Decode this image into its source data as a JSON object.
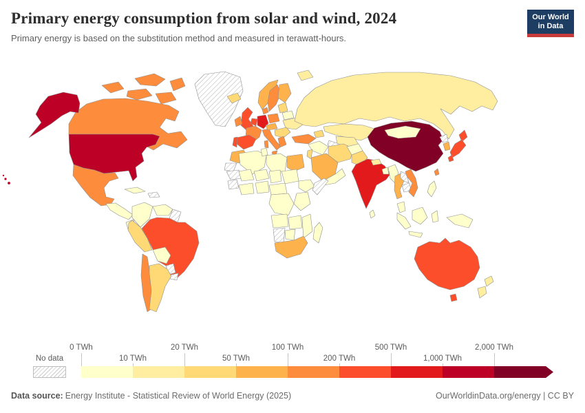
{
  "header": {
    "title": "Primary energy consumption from solar and wind, 2024",
    "subtitle": "Primary energy is based on the substitution method and measured in terawatt-hours.",
    "logo": {
      "line1": "Our World",
      "line2": "in Data",
      "bg_color": "#1d3d63",
      "stripe_color": "#c93a3a"
    }
  },
  "legend": {
    "no_data_label": "No data",
    "ticks": [
      "0 TWh",
      "10 TWh",
      "20 TWh",
      "50 TWh",
      "100 TWh",
      "200 TWh",
      "500 TWh",
      "1,000 TWh",
      "2,000 TWh"
    ],
    "colors": [
      "#ffffcc",
      "#ffeda0",
      "#fed976",
      "#feb24c",
      "#fd8d3c",
      "#fc4e2a",
      "#e31a1c",
      "#bd0026",
      "#800026"
    ]
  },
  "footer": {
    "source_label": "Data source:",
    "source_text": "Energy Institute - Statistical Review of World Energy (2025)",
    "right_text": "OurWorldinData.org/energy | CC BY"
  },
  "chart_data": {
    "type": "choropleth",
    "subtype": "world-map",
    "title": "Primary energy consumption from solar and wind, 2024",
    "unit": "TWh",
    "legend_bins": [
      "0-10",
      "10-20",
      "20-50",
      "50-100",
      "100-200",
      "200-500",
      "500-1,000",
      "1,000-2,000",
      "2,000+",
      "No data"
    ],
    "bin_colors": [
      "#ffffcc",
      "#ffeda0",
      "#fed976",
      "#feb24c",
      "#fd8d3c",
      "#fc4e2a",
      "#e31a1c",
      "#bd0026",
      "#800026",
      "hatched"
    ],
    "readings": {
      "china": "2,000+ TWh",
      "united_states": "1,000-2,000 TWh",
      "germany": "500-1,000 TWh",
      "india": "500-1,000 TWh",
      "brazil": "200-500 TWh",
      "spain": "200-500 TWh",
      "united_kingdom": "200-500 TWh",
      "japan": "200-500 TWh",
      "australia": "200-500 TWh",
      "netherlands": "200-500 TWh",
      "france": "100-200 TWh",
      "canada": "100-200 TWh",
      "mexico": "100-200 TWh",
      "sweden": "100-200 TWh",
      "poland": "100-200 TWh",
      "italy": "100-200 TWh",
      "turkey": "100-200 TWh",
      "vietnam": "100-200 TWh",
      "chile": "100-200 TWh",
      "south_korea": "50-100 TWh",
      "saudi_arabia": "50-100 TWh",
      "egypt": "50-100 TWh",
      "morocco": "50-100 TWh",
      "south_africa": "50-100 TWh",
      "thailand": "50-100 TWh",
      "argentina": "20-50 TWh",
      "peru": "20-50 TWh",
      "iran": "20-50 TWh",
      "pakistan": "20-50 TWh",
      "russia": "10-20 TWh",
      "ukraine": "10-20 TWh",
      "kazakhstan": "10-20 TWh",
      "new_zealand": "10-20 TWh",
      "most_of_africa": "0-10 TWh",
      "indonesia": "0-10 TWh",
      "greenland": "No data",
      "paraguay": "No data",
      "laos": "No data",
      "somalia": "No data",
      "namibia": "No data",
      "turkmenistan": "No data",
      "north_korea": "No data"
    }
  },
  "map": {
    "countries": {
      "greenland": "hatch",
      "arctic_islands_1": "#fd8d3c",
      "arctic_islands_2": "#fd8d3c",
      "arctic_islands_3": "#fd8d3c",
      "arctic_islands_4": "#fd8d3c",
      "arctic_islands_5": "#fd8d3c",
      "canada": "#fd8d3c",
      "alaska": "#bd0026",
      "united_states": "#bd0026",
      "hawaii": "#bd0026",
      "mexico": "#fd8d3c",
      "central_america": "#ffffcc",
      "cuba": "#ffffcc",
      "hispaniola": "hatch",
      "colombia": "#ffffcc",
      "venezuela": "#ffffcc",
      "guyana_suriname": "hatch",
      "ecuador": "#ffffcc",
      "peru": "#fed976",
      "brazil": "#fc4e2a",
      "bolivia": "#ffffcc",
      "paraguay": "hatch",
      "chile": "#fd8d3c",
      "argentina": "#fed976",
      "uruguay": "hatch",
      "iceland": "#fed976",
      "norway": "#feb24c",
      "sweden": "#fd8d3c",
      "finland": "#feb24c",
      "united_kingdom": "#fc4e2a",
      "ireland": "#fd8d3c",
      "denmark": "#fd8d3c",
      "netherlands_belgium": "#fc4e2a",
      "germany": "#e31a1c",
      "france": "#fd8d3c",
      "spain": "#fc4e2a",
      "portugal": "#fc4e2a",
      "italy": "#fd8d3c",
      "poland": "#fd8d3c",
      "baltics": "#fed976",
      "belarus": "#ffffcc",
      "ukraine": "#ffeda0",
      "central_europe": "#feb24c",
      "balkans": "#fed976",
      "greece": "#fd8d3c",
      "turkey": "#fd8d3c",
      "russia": "#ffeda0",
      "arctic_islands_ru": "#ffeda0",
      "kazakhstan": "#ffeda0",
      "central_asia": "#ffeda0",
      "turkmenistan": "hatch",
      "caucasus": "#fed976",
      "syria_iraq": "#ffffcc",
      "iran": "#fed976",
      "saudi_arabia": "#feb24c",
      "yemen_oman": "#ffffcc",
      "jordan_israel": "#fed976",
      "morocco": "#feb24c",
      "western_sahara": "hatch",
      "algeria": "#ffffcc",
      "tunisia": "#ffffcc",
      "libya": "#ffffcc",
      "egypt": "#feb24c",
      "mauritania": "hatch",
      "mali": "#ffffcc",
      "niger": "#ffffcc",
      "chad": "#ffffcc",
      "sudan": "#ffffcc",
      "guinea_region": "hatch",
      "west_africa": "#ffffcc",
      "nigeria": "#ffffcc",
      "ethiopia": "#ffffcc",
      "somalia": "hatch",
      "central_africa": "#ffffcc",
      "dr_congo": "#ffffcc",
      "east_africa": "#ffffcc",
      "angola": "#ffffcc",
      "zambia_zimbabwe": "#ffffcc",
      "mozambique": "#ffffcc",
      "namibia": "hatch",
      "botswana": "#ffffcc",
      "south_africa": "#feb24c",
      "madagascar": "#ffffcc",
      "afghanistan": "#ffffcc",
      "pakistan": "#fed976",
      "india": "#e31a1c",
      "nepal": "#ffeda0",
      "bangladesh": "#ffffcc",
      "sri_lanka": "#ffffcc",
      "myanmar": "#ffffcc",
      "thailand": "#feb24c",
      "laos": "hatch",
      "cambodia": "hatch",
      "vietnam": "#fd8d3c",
      "malaysia": "#ffffcc",
      "china": "#800026",
      "mongolia": "#ffffcc",
      "north_korea": "hatch",
      "south_korea": "#feb24c",
      "japan_hokkaido": "#fc4e2a",
      "japan_honshu": "#fc4e2a",
      "japan_kyushu": "#fc4e2a",
      "taiwan": "#fd8d3c",
      "philippines": "#ffffcc",
      "sumatra": "#ffffcc",
      "java": "#ffffcc",
      "borneo": "#ffffcc",
      "sulawesi": "#ffffcc",
      "new_guinea": "#ffffcc",
      "australia": "#fc4e2a",
      "tasmania": "#fc4e2a",
      "new_zealand_north": "#ffeda0",
      "new_zealand_south": "#ffeda0"
    }
  }
}
